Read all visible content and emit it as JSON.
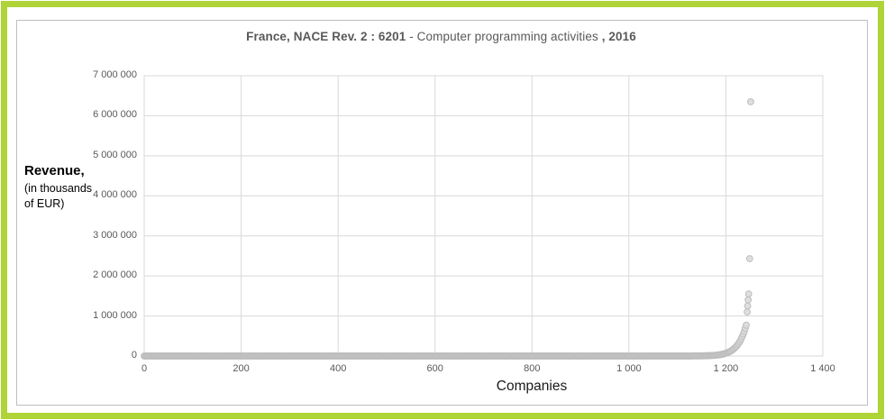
{
  "frame": {
    "outer_border_color": "#afd437",
    "chart_border_color": "#bfbfbf",
    "background": "#ffffff"
  },
  "title": {
    "part1_bold": "France, NACE Rev. 2 : 6201",
    "part2_regular": " - Computer programming activities ",
    "part3_bold": ", 2016",
    "color": "#595959"
  },
  "y_axis": {
    "title_main": "Revenue,",
    "title_sub_line1": "(in thousands",
    "title_sub_line2": "of EUR)",
    "tick_labels": [
      "0",
      "1 000 000",
      "2 000 000",
      "3 000 000",
      "4 000 000",
      "5 000 000",
      "6 000 000",
      "7 000 000"
    ],
    "tick_color": "#595959"
  },
  "x_axis": {
    "title": "Companies",
    "tick_labels": [
      "0",
      "200",
      "400",
      "600",
      "800",
      "1 000",
      "1 200",
      "1 400"
    ],
    "tick_color": "#595959"
  },
  "chart_data": {
    "type": "scatter",
    "title": "France, NACE Rev. 2 : 6201 - Computer programming activities , 2016",
    "xlabel": "Companies",
    "ylabel": "Revenue, (in thousands of EUR)",
    "xlim": [
      0,
      1400
    ],
    "ylim": [
      0,
      7000000
    ],
    "x_ticks": [
      0,
      200,
      400,
      600,
      800,
      1000,
      1200,
      1400
    ],
    "y_ticks": [
      0,
      1000000,
      2000000,
      3000000,
      4000000,
      5000000,
      6000000,
      7000000
    ],
    "grid": true,
    "grid_color": "#d9d9d9",
    "legend": "none",
    "marker": {
      "shape": "circle",
      "fill": "#dcdcdc",
      "stroke": "#bdbdbd",
      "radius": 3.4,
      "opacity": 0.9
    },
    "distribution": {
      "description": "Companies sorted ascending by revenue: long near-zero baseline for most of ~1250 companies, sharp rise near the right end",
      "n_baseline": 1242,
      "baseline_max_revenue": 770000,
      "power_exponent": 70,
      "sample_step": 2
    },
    "outliers": [
      [
        1244,
        1100000
      ],
      [
        1245,
        1250000
      ],
      [
        1246,
        1400000
      ],
      [
        1247,
        1550000
      ],
      [
        1249,
        2430000
      ],
      [
        1251,
        6350000
      ]
    ]
  }
}
